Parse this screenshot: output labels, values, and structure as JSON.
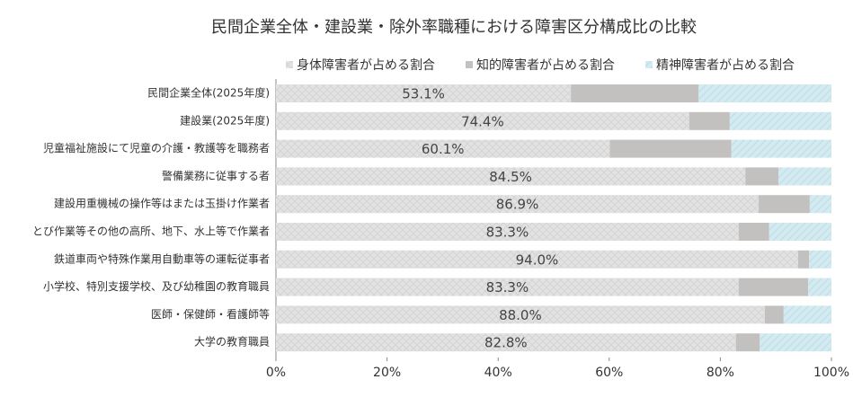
{
  "chart_data": {
    "type": "stacked-barh",
    "title": "民間企業全体・建設業・除外率職種における障害区分構成比の比較",
    "categories": [
      "民間企業全体(2025年度)",
      "建設業(2025年度)",
      "児童福祉施設にて児童の介護・教護等を職務者",
      "警備業務に従事する者",
      "建設用重機械の操作等はまたは玉掛け作業者",
      "とび作業等その他の高所、地下、水上等で作業者",
      "鉄道車両や特殊作業用自動車等の運転従事者",
      "小学校、特別支援学校、及び幼稚園の教育職員",
      "医師・保健師・看護師等",
      "大学の教育職員"
    ],
    "series": [
      {
        "name": "身体障害者が占める割合",
        "color": "#e2e2e2",
        "values": [
          53.1,
          74.4,
          60.1,
          84.5,
          86.9,
          83.3,
          94.0,
          83.3,
          88.0,
          82.8
        ],
        "value_labels": [
          "53.1%",
          "74.4%",
          "60.1%",
          "84.5%",
          "86.9%",
          "83.3%",
          "94.0%",
          "83.3%",
          "88.0%",
          "82.8%"
        ]
      },
      {
        "name": "知的障害者が占める割合",
        "color": "#c2c1bf",
        "values": [
          23.0,
          7.3,
          21.9,
          6.0,
          9.2,
          5.5,
          2.0,
          12.5,
          3.4,
          4.3
        ]
      },
      {
        "name": "精神障害者が占める割合",
        "color": "#d3eaf1",
        "values": [
          23.9,
          18.3,
          18.0,
          9.5,
          3.9,
          11.2,
          4.0,
          4.2,
          8.6,
          12.9
        ]
      }
    ],
    "xlim": [
      0,
      100
    ],
    "xticks": [
      {
        "value": 0,
        "label": "0%"
      },
      {
        "value": 20,
        "label": "20%"
      },
      {
        "value": 40,
        "label": "40%"
      },
      {
        "value": 60,
        "label": "60%"
      },
      {
        "value": 80,
        "label": "80%"
      },
      {
        "value": 100,
        "label": "100%"
      }
    ],
    "grid": false
  }
}
